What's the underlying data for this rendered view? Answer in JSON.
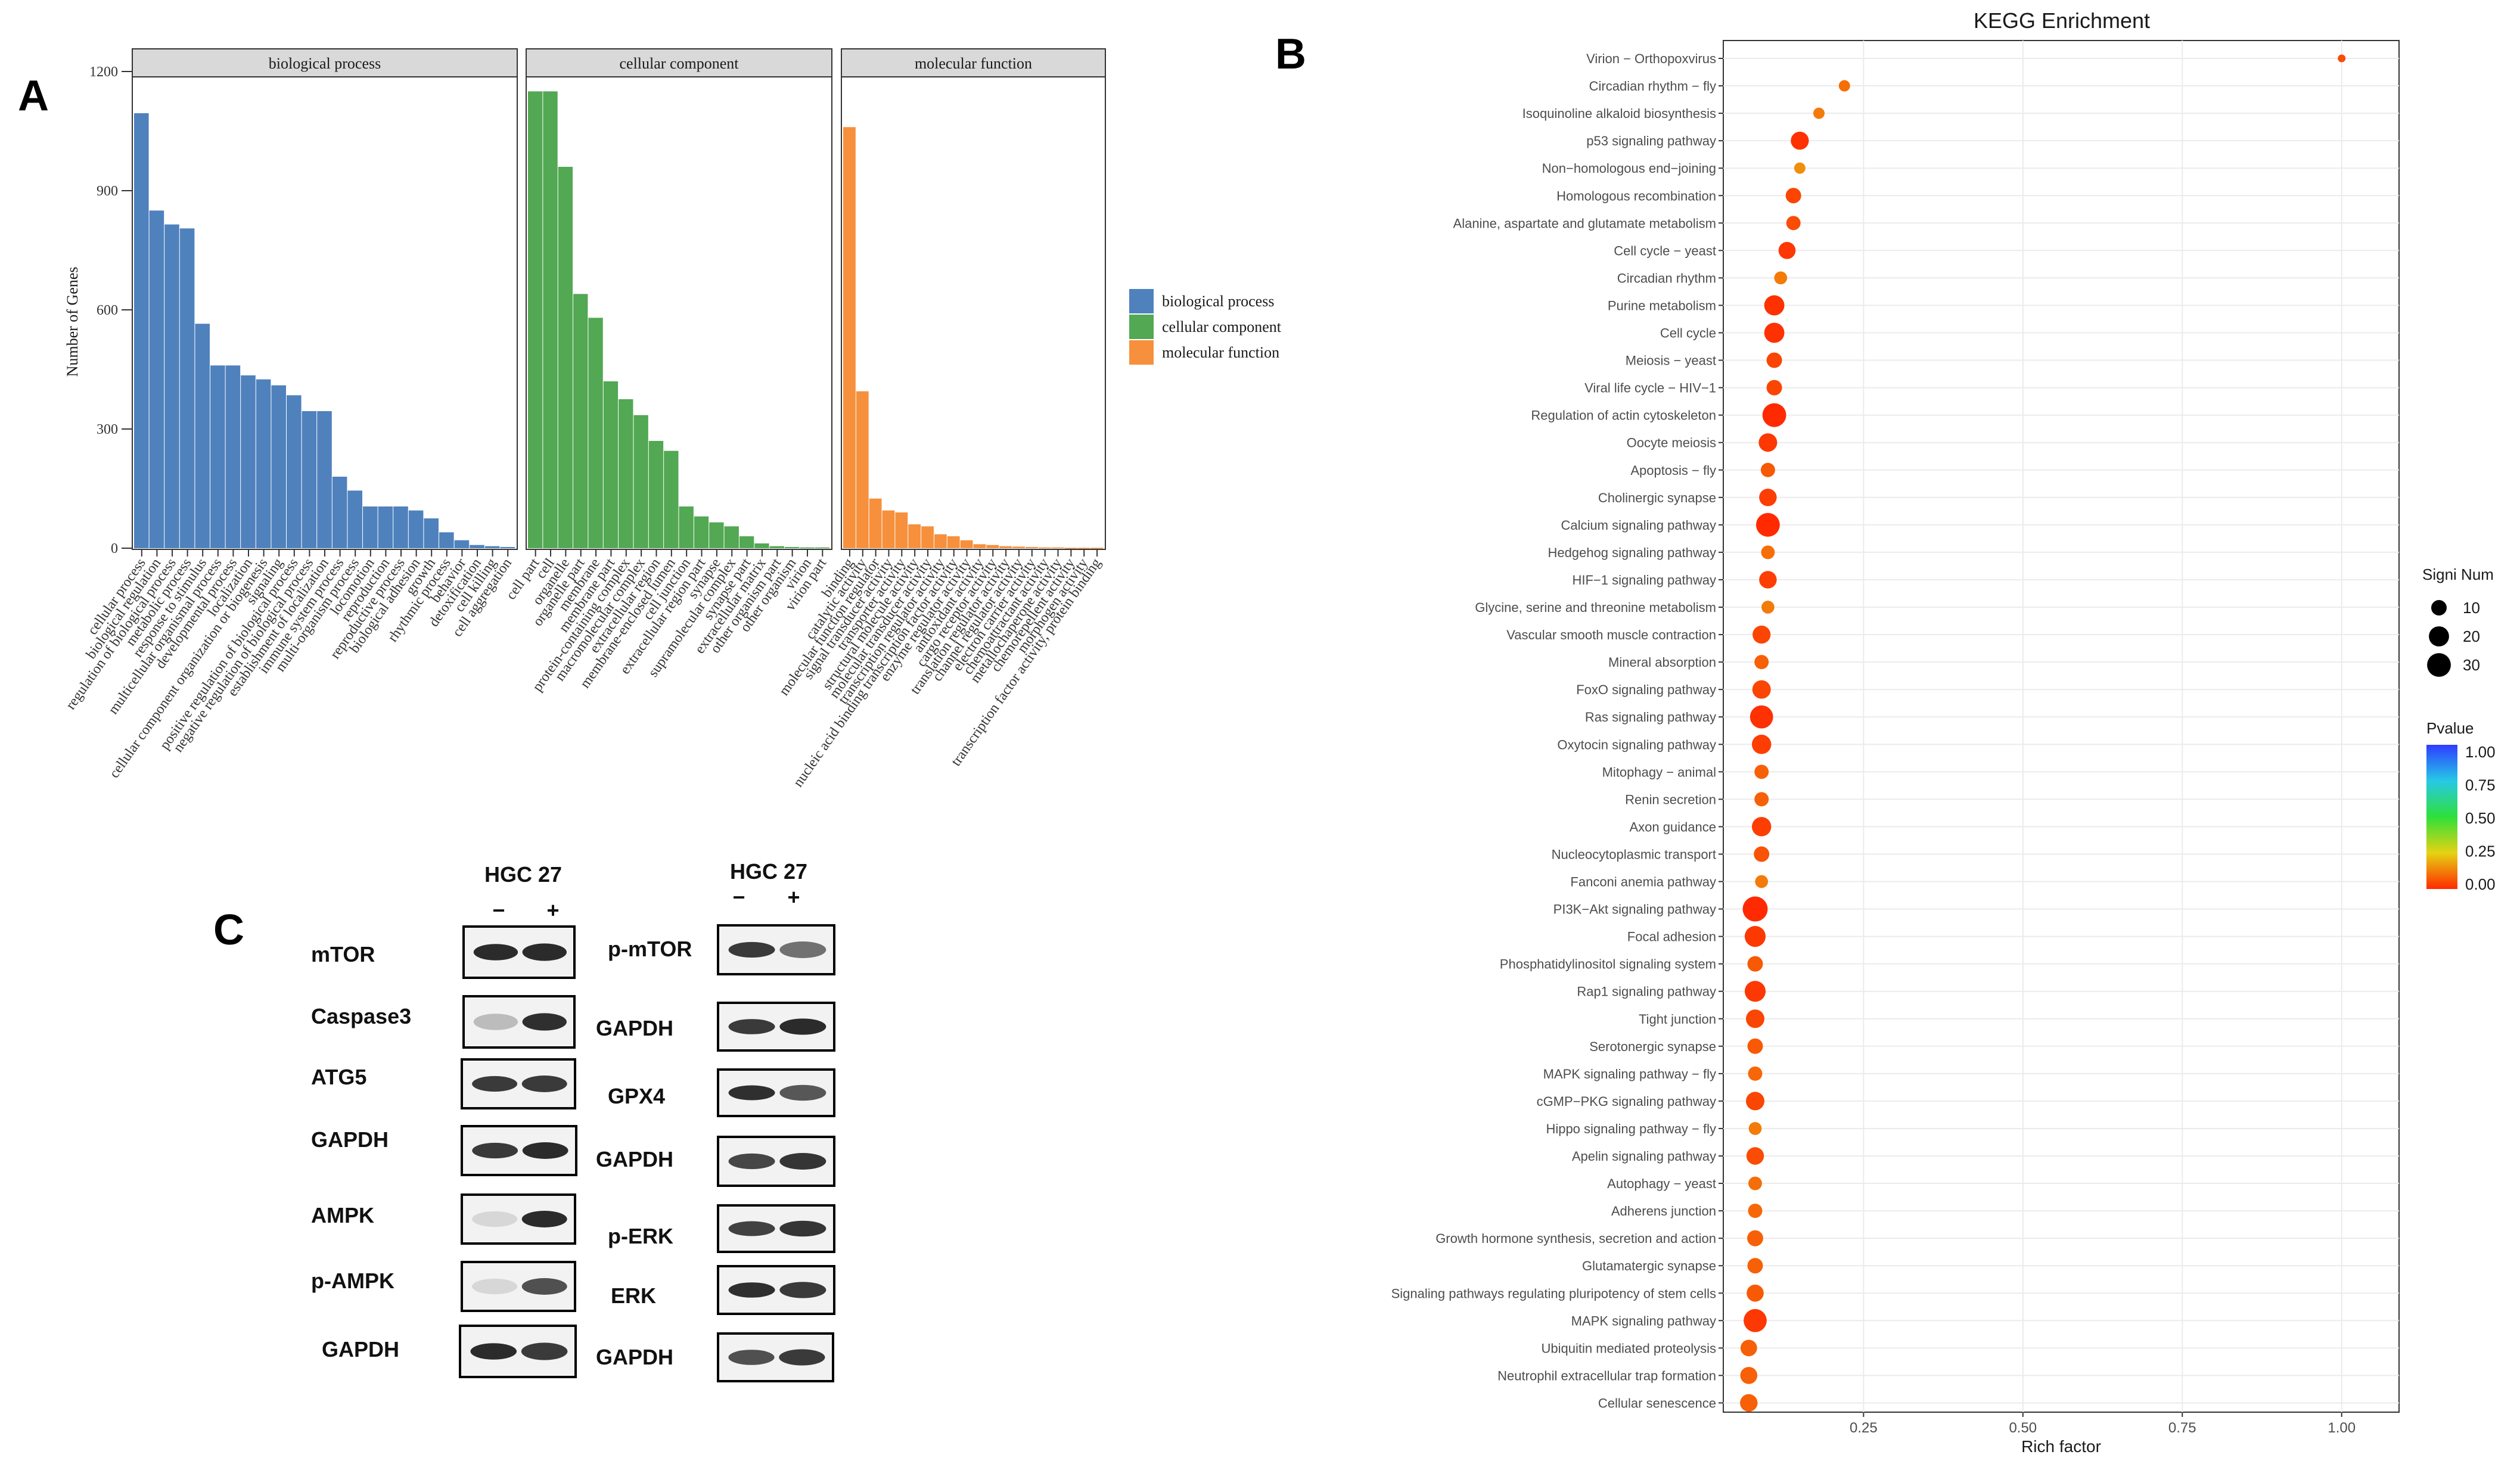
{
  "panels": {
    "a": "A",
    "b": "B",
    "c": "C"
  },
  "go_chart": {
    "ylabel": "Number of Genes",
    "y_ticks": [
      "0",
      "300",
      "600",
      "900",
      "1200"
    ],
    "legend_title": "",
    "colors": {
      "biological process": "#4f81bd",
      "cellular component": "#52a853",
      "molecular function": "#f6903d"
    }
  },
  "kegg_chart": {
    "title": "KEGG Enrichment",
    "xlabel": "Rich factor",
    "x_ticks": [
      "0.25",
      "0.50",
      "0.75",
      "1.00"
    ],
    "size_legend_title": "Signi Num",
    "size_legend_values": [
      "10",
      "20",
      "30"
    ],
    "color_legend_title": "Pvalue",
    "color_legend_ticks": [
      "1.00",
      "0.75",
      "0.50",
      "0.25",
      "0.00"
    ]
  },
  "chart_data": [
    {
      "type": "bar",
      "title": "",
      "ylabel": "Number of Genes",
      "ylim": [
        0,
        1200
      ],
      "facets": [
        {
          "name": "biological process",
          "color": "#4f81bd",
          "categories": [
            "cellular process",
            "biological regulation",
            "regulation of biological process",
            "metabolic process",
            "response to stimulus",
            "multicellular organismal process",
            "developmental process",
            "localization",
            "cellular component organization or biogenesis",
            "signaling",
            "positive regulation of biological process",
            "negative regulation of biological process",
            "establishment of localization",
            "immune system process",
            "multi-organism process",
            "locomotion",
            "reproduction",
            "reproductive process",
            "biological adhesion",
            "growth",
            "rhythmic process",
            "behavior",
            "detoxification",
            "cell killing",
            "cell aggregation"
          ],
          "values": [
            1095,
            850,
            815,
            805,
            565,
            460,
            460,
            435,
            425,
            410,
            385,
            345,
            345,
            180,
            145,
            105,
            105,
            105,
            95,
            75,
            40,
            20,
            8,
            5,
            3
          ]
        },
        {
          "name": "cellular component",
          "color": "#52a853",
          "categories": [
            "cell part",
            "cell",
            "organelle",
            "organelle part",
            "membrane",
            "membrane part",
            "protein-containing complex",
            "macromolecular complex",
            "extracellular region",
            "membrane-enclosed lumen",
            "cell junction",
            "extracellular region part",
            "synapse",
            "supramolecular complex",
            "synapse part",
            "extracellular matrix",
            "other organism part",
            "other organism",
            "virion",
            "virion part"
          ],
          "values": [
            1150,
            1150,
            960,
            640,
            580,
            420,
            375,
            335,
            270,
            245,
            105,
            80,
            65,
            55,
            30,
            12,
            5,
            3,
            2,
            2
          ]
        },
        {
          "name": "molecular function",
          "color": "#f6903d",
          "categories": [
            "binding",
            "catalytic activity",
            "molecular function regulator",
            "signal transducer activity",
            "transporter activity",
            "structural molecule activity",
            "molecular transducer activity",
            "transcription regulator activity",
            "nucleic acid binding transcription factor activity",
            "enzyme regulator activity",
            "antioxidant activity",
            "cargo receptor activity",
            "translation regulator activity",
            "channel regulator activity",
            "electron carrier activity",
            "chemoattractant activity",
            "metallochaperone activity",
            "chemorepellent activity",
            "morphogen activity",
            "transcription factor activity, protein binding"
          ],
          "values": [
            1060,
            395,
            125,
            95,
            90,
            60,
            55,
            35,
            30,
            20,
            10,
            8,
            5,
            4,
            3,
            2,
            2,
            1,
            1,
            1
          ]
        }
      ]
    },
    {
      "type": "scatter",
      "title": "KEGG Enrichment",
      "xlabel": "Rich factor",
      "ylabel": "",
      "xlim": [
        0.03,
        1.09
      ],
      "size_legend": [
        10,
        20,
        30
      ],
      "color_scale": {
        "min": 0.0,
        "max": 1.0,
        "low_color": "#ff2a00",
        "high_color": "#3b3bff"
      },
      "points": [
        {
          "term": "Virion − Orthopoxvirus",
          "rich": 1.0,
          "count": 1,
          "p": 0.05
        },
        {
          "term": "Circadian rhythm − fly",
          "rich": 0.22,
          "count": 4,
          "p": 0.1
        },
        {
          "term": "Isoquinoline alkaloid biosynthesis",
          "rich": 0.18,
          "count": 4,
          "p": 0.12
        },
        {
          "term": "p53 signaling pathway",
          "rich": 0.15,
          "count": 15,
          "p": 0.01
        },
        {
          "term": "Non−homologous end−joining",
          "rich": 0.15,
          "count": 4,
          "p": 0.15
        },
        {
          "term": "Homologous recombination",
          "rich": 0.14,
          "count": 10,
          "p": 0.04
        },
        {
          "term": "Alanine, aspartate and glutamate metabolism",
          "rich": 0.14,
          "count": 8,
          "p": 0.05
        },
        {
          "term": "Cell cycle − yeast",
          "rich": 0.13,
          "count": 13,
          "p": 0.02
        },
        {
          "term": "Circadian rhythm",
          "rich": 0.12,
          "count": 6,
          "p": 0.12
        },
        {
          "term": "Purine metabolism",
          "rich": 0.11,
          "count": 20,
          "p": 0.01
        },
        {
          "term": "Cell cycle",
          "rich": 0.11,
          "count": 20,
          "p": 0.01
        },
        {
          "term": "Meiosis − yeast",
          "rich": 0.11,
          "count": 10,
          "p": 0.04
        },
        {
          "term": "Viral life cycle − HIV−1",
          "rich": 0.11,
          "count": 10,
          "p": 0.04
        },
        {
          "term": "Regulation of actin cytoskeleton",
          "rich": 0.11,
          "count": 30,
          "p": 0.0
        },
        {
          "term": "Oocyte meiosis",
          "rich": 0.1,
          "count": 16,
          "p": 0.02
        },
        {
          "term": "Apoptosis − fly",
          "rich": 0.1,
          "count": 8,
          "p": 0.07
        },
        {
          "term": "Cholinergic synapse",
          "rich": 0.1,
          "count": 14,
          "p": 0.03
        },
        {
          "term": "Calcium signaling pathway",
          "rich": 0.1,
          "count": 30,
          "p": 0.0
        },
        {
          "term": "Hedgehog signaling pathway",
          "rich": 0.1,
          "count": 7,
          "p": 0.1
        },
        {
          "term": "HIF−1 signaling pathway",
          "rich": 0.1,
          "count": 14,
          "p": 0.03
        },
        {
          "term": "Glycine, serine and threonine metabolism",
          "rich": 0.1,
          "count": 6,
          "p": 0.12
        },
        {
          "term": "Vascular smooth muscle contraction",
          "rich": 0.09,
          "count": 15,
          "p": 0.04
        },
        {
          "term": "Mineral absorption",
          "rich": 0.09,
          "count": 8,
          "p": 0.08
        },
        {
          "term": "FoxO signaling pathway",
          "rich": 0.09,
          "count": 16,
          "p": 0.04
        },
        {
          "term": "Ras signaling pathway",
          "rich": 0.09,
          "count": 28,
          "p": 0.01
        },
        {
          "term": "Oxytocin signaling pathway",
          "rich": 0.09,
          "count": 18,
          "p": 0.03
        },
        {
          "term": "Mitophagy − animal",
          "rich": 0.09,
          "count": 8,
          "p": 0.08
        },
        {
          "term": "Renin secretion",
          "rich": 0.09,
          "count": 8,
          "p": 0.08
        },
        {
          "term": "Axon guidance",
          "rich": 0.09,
          "count": 18,
          "p": 0.03
        },
        {
          "term": "Nucleocytoplasmic transport",
          "rich": 0.09,
          "count": 10,
          "p": 0.06
        },
        {
          "term": "Fanconi anemia pathway",
          "rich": 0.09,
          "count": 6,
          "p": 0.12
        },
        {
          "term": "PI3K−Akt signaling pathway",
          "rich": 0.08,
          "count": 34,
          "p": 0.0
        },
        {
          "term": "Focal adhesion",
          "rich": 0.08,
          "count": 22,
          "p": 0.02
        },
        {
          "term": "Phosphatidylinositol signaling system",
          "rich": 0.08,
          "count": 10,
          "p": 0.07
        },
        {
          "term": "Rap1 signaling pathway",
          "rich": 0.08,
          "count": 22,
          "p": 0.02
        },
        {
          "term": "Tight junction",
          "rich": 0.08,
          "count": 16,
          "p": 0.04
        },
        {
          "term": "Serotonergic synapse",
          "rich": 0.08,
          "count": 10,
          "p": 0.07
        },
        {
          "term": "MAPK signaling pathway − fly",
          "rich": 0.08,
          "count": 8,
          "p": 0.09
        },
        {
          "term": "cGMP−PKG signaling pathway",
          "rich": 0.08,
          "count": 16,
          "p": 0.04
        },
        {
          "term": "Hippo signaling pathway − fly",
          "rich": 0.08,
          "count": 6,
          "p": 0.12
        },
        {
          "term": "Apelin signaling pathway",
          "rich": 0.08,
          "count": 14,
          "p": 0.05
        },
        {
          "term": "Autophagy − yeast",
          "rich": 0.08,
          "count": 7,
          "p": 0.1
        },
        {
          "term": "Adherens junction",
          "rich": 0.08,
          "count": 8,
          "p": 0.09
        },
        {
          "term": "Growth hormone synthesis, secretion and action",
          "rich": 0.08,
          "count": 11,
          "p": 0.08
        },
        {
          "term": "Glutamatergic synapse",
          "rich": 0.08,
          "count": 10,
          "p": 0.08
        },
        {
          "term": "Signaling pathways regulating pluripotency of stem cells",
          "rich": 0.08,
          "count": 13,
          "p": 0.07
        },
        {
          "term": "MAPK signaling pathway",
          "rich": 0.08,
          "count": 28,
          "p": 0.02
        },
        {
          "term": "Ubiquitin mediated proteolysis",
          "rich": 0.07,
          "count": 12,
          "p": 0.08
        },
        {
          "term": "Neutrophil extracellular trap formation",
          "rich": 0.07,
          "count": 13,
          "p": 0.08
        },
        {
          "term": "Cellular senescence",
          "rich": 0.07,
          "count": 14,
          "p": 0.08
        }
      ]
    }
  ],
  "western_blot": {
    "header": "HGC 27",
    "minus": "−",
    "plus": "+",
    "left_labels": [
      "mTOR",
      "Caspase3",
      "ATG5",
      "GAPDH",
      "AMPK",
      "p-AMPK",
      "GAPDH"
    ],
    "right_labels": [
      "p-mTOR",
      "GAPDH",
      "GPX4",
      "GAPDH",
      "p-ERK",
      "ERK",
      "GAPDH"
    ]
  }
}
